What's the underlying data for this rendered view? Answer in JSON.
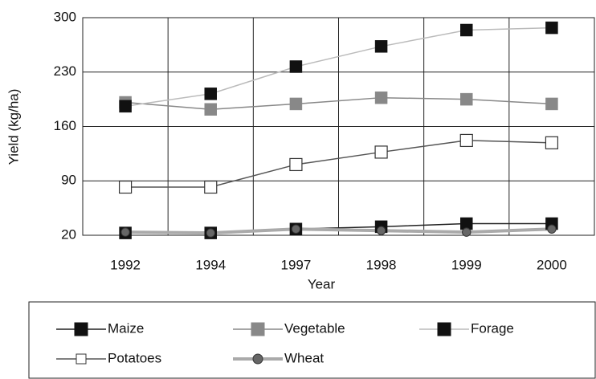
{
  "chart_data": {
    "type": "line",
    "x_label": "Year",
    "y_label": "Yield (kg/ha)",
    "categories": [
      "1992",
      "1994",
      "1997",
      "1998",
      "1999",
      "2000"
    ],
    "ylim": [
      20,
      300
    ],
    "yticks": [
      20,
      90,
      160,
      230,
      300
    ],
    "grid": true,
    "legend": "bottom",
    "series": [
      {
        "name": "Maize",
        "color": "#222222",
        "marker": "square",
        "marker_color": "#111111",
        "line_width": 1.5,
        "values": [
          23,
          23,
          28,
          31,
          35,
          35
        ]
      },
      {
        "name": "Vegetable",
        "color": "#888888",
        "marker": "square",
        "marker_color": "#888888",
        "line_width": 1.5,
        "values": [
          191,
          182,
          189,
          197,
          195,
          189
        ]
      },
      {
        "name": "Forage",
        "color": "#bbbbbb",
        "marker": "square",
        "marker_color": "#111111",
        "line_width": 1.5,
        "values": [
          186,
          202,
          237,
          263,
          284,
          287
        ]
      },
      {
        "name": "Potatoes",
        "color": "#555555",
        "marker": "open-square",
        "marker_color": "#333333",
        "line_width": 1.5,
        "values": [
          82,
          82,
          111,
          127,
          142,
          139
        ]
      },
      {
        "name": "Wheat",
        "color": "#aaaaaa",
        "marker": "circle",
        "marker_color": "#666666",
        "line_width": 4,
        "values": [
          24,
          23,
          28,
          26,
          24,
          28
        ]
      }
    ]
  }
}
